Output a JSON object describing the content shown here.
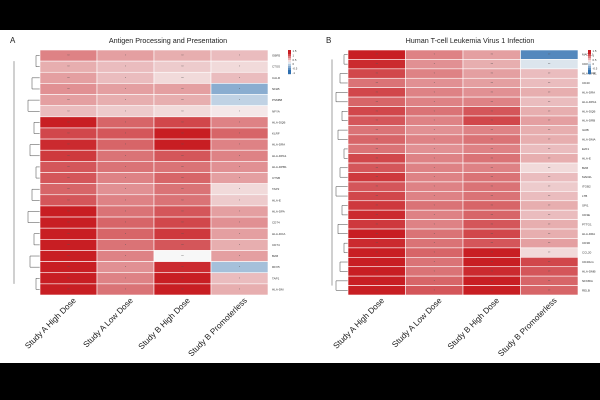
{
  "chart_data": [
    {
      "type": "heatmap",
      "panel_letter": "A",
      "title": "Antigen Processing and Presentation",
      "columns": [
        "Study A High Dose",
        "Study A Low Dose",
        "Study B High Dose",
        "Study B Promoterless"
      ],
      "rows": [
        "GBR5",
        "CTSS",
        "CALR",
        "NFkB",
        "PSMB8",
        "NFYA",
        "HLA-DQB",
        "KLRF",
        "HLA-DRA",
        "HLA-DPA1",
        "HLA-DPB1",
        "CTSB",
        "TAP2",
        "HLA-E",
        "HLA-DPA",
        "CD74",
        "HLA-DOA",
        "CD74",
        "B2M",
        "RFX5",
        "TAP1",
        "HLA-DM"
      ],
      "values": [
        [
          0.4,
          0.3,
          0.25,
          0.2
        ],
        [
          0.25,
          0.2,
          0.15,
          0.1
        ],
        [
          0.3,
          0.2,
          0.1,
          0.2
        ],
        [
          0.35,
          0.3,
          0.3,
          -0.4
        ],
        [
          0.3,
          0.25,
          0.25,
          -0.2
        ],
        [
          0.2,
          0.15,
          0.1,
          0.05
        ],
        [
          0.9,
          0.5,
          0.6,
          0.4
        ],
        [
          0.6,
          0.55,
          0.9,
          0.5
        ],
        [
          0.7,
          0.5,
          0.75,
          0.4
        ],
        [
          0.65,
          0.45,
          0.55,
          0.4
        ],
        [
          0.55,
          0.45,
          0.45,
          0.35
        ],
        [
          0.55,
          0.4,
          0.5,
          0.3
        ],
        [
          0.5,
          0.35,
          0.45,
          0.1
        ],
        [
          0.55,
          0.4,
          0.45,
          0.15
        ],
        [
          0.85,
          0.45,
          0.55,
          0.3
        ],
        [
          0.85,
          0.5,
          0.6,
          0.35
        ],
        [
          0.85,
          0.5,
          0.65,
          0.3
        ],
        [
          0.8,
          0.45,
          0.55,
          0.25
        ],
        [
          0.75,
          0.4,
          0.0,
          0.3
        ],
        [
          0.8,
          0.35,
          0.7,
          -0.3
        ],
        [
          0.9,
          0.4,
          0.8,
          0.2
        ],
        [
          0.95,
          0.45,
          0.85,
          0.25
        ]
      ],
      "cell_labels": [
        "**",
        "*",
        "**",
        "*"
      ],
      "legend_ticks": [
        "1.5",
        "1",
        "0.5",
        "0",
        "-0.5",
        "-1"
      ],
      "vmin": -1.5,
      "vmax": 1.5
    },
    {
      "type": "heatmap",
      "panel_letter": "B",
      "title": "Human T-cell Leukemia Virus 1 Infection",
      "columns": [
        "Study A High Dose",
        "Study A Low Dose",
        "Study B High Dose",
        "Study B Promoterless"
      ],
      "rows": [
        "MAD2L1",
        "CDK4",
        "HLA-DPB1",
        "CD40",
        "HLA-DRA",
        "HLA-DPA1",
        "HLA-DQB",
        "HLA-DRB",
        "ILRB",
        "HLA-DMA",
        "E2F1",
        "HLA-E",
        "B2M",
        "MAD2L",
        "ITGB2",
        "LTB",
        "SPI1",
        "CD3E",
        "PTTG1",
        "HLA-DRA",
        "CD3D",
        "CCL20",
        "CD40LG",
        "HLA-DMB",
        "NFKBIA",
        "RELB"
      ],
      "values": [
        [
          0.85,
          0.4,
          0.3,
          -0.6
        ],
        [
          0.7,
          0.35,
          0.25,
          -0.1
        ],
        [
          0.6,
          0.4,
          0.3,
          0.2
        ],
        [
          0.45,
          0.35,
          0.3,
          0.2
        ],
        [
          0.6,
          0.4,
          0.35,
          0.25
        ],
        [
          0.5,
          0.4,
          0.4,
          0.2
        ],
        [
          0.6,
          0.45,
          0.55,
          0.25
        ],
        [
          0.55,
          0.4,
          0.6,
          0.3
        ],
        [
          0.45,
          0.35,
          0.4,
          0.25
        ],
        [
          0.5,
          0.4,
          0.45,
          0.25
        ],
        [
          0.45,
          0.35,
          0.4,
          0.2
        ],
        [
          0.6,
          0.4,
          0.45,
          0.25
        ],
        [
          0.55,
          0.4,
          0.4,
          0.1
        ],
        [
          0.65,
          0.4,
          0.45,
          0.2
        ],
        [
          0.55,
          0.4,
          0.45,
          0.15
        ],
        [
          0.6,
          0.4,
          0.45,
          0.2
        ],
        [
          0.65,
          0.45,
          0.5,
          0.25
        ],
        [
          0.7,
          0.4,
          0.5,
          0.2
        ],
        [
          0.65,
          0.4,
          0.55,
          0.25
        ],
        [
          0.75,
          0.45,
          0.6,
          0.25
        ],
        [
          0.7,
          0.45,
          0.55,
          0.3
        ],
        [
          0.9,
          0.5,
          0.8,
          0.1
        ],
        [
          0.95,
          0.45,
          0.95,
          0.6
        ],
        [
          0.85,
          0.45,
          0.7,
          0.55
        ],
        [
          0.9,
          0.5,
          0.8,
          0.5
        ],
        [
          0.95,
          0.55,
          0.75,
          0.5
        ]
      ],
      "cell_labels": [
        "**",
        "*",
        "**",
        "**"
      ],
      "legend_ticks": [
        "1.5",
        "1",
        "0.5",
        "0",
        "-0.5",
        "-1"
      ],
      "vmin": -1.5,
      "vmax": 1.5
    }
  ]
}
